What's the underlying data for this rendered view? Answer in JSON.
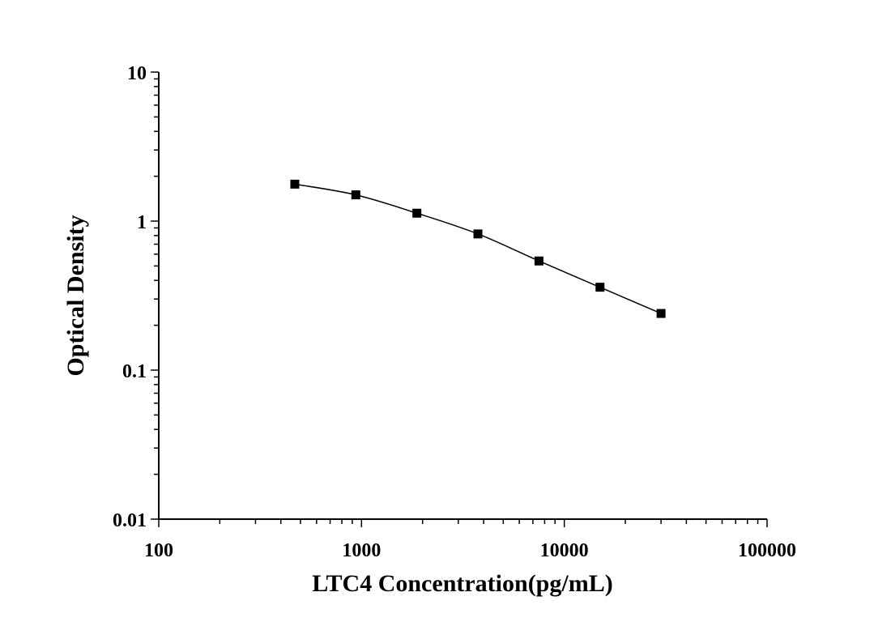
{
  "chart_data": {
    "type": "scatter",
    "title": "",
    "xlabel": "LTC4 Concentration(pg/mL)",
    "ylabel": "Optical Density",
    "x_scale": "log",
    "y_scale": "log",
    "xlim": [
      100,
      100000
    ],
    "ylim": [
      0.01,
      10
    ],
    "x_ticks": [
      "100",
      "1000",
      "10000",
      "100000"
    ],
    "y_ticks": [
      "0.01",
      "0.1",
      "1",
      "10"
    ],
    "grid": false,
    "legend": "none",
    "marker": "square",
    "line": "smooth fit curve",
    "colors": {
      "marker": "#000000",
      "line": "#000000",
      "axis": "#000000"
    },
    "series": [
      {
        "x": [
          468.75,
          937.5,
          1875,
          3750,
          7500,
          15000,
          30000
        ],
        "y": [
          1.77,
          1.5,
          1.13,
          0.82,
          0.54,
          0.36,
          0.24
        ]
      }
    ]
  }
}
